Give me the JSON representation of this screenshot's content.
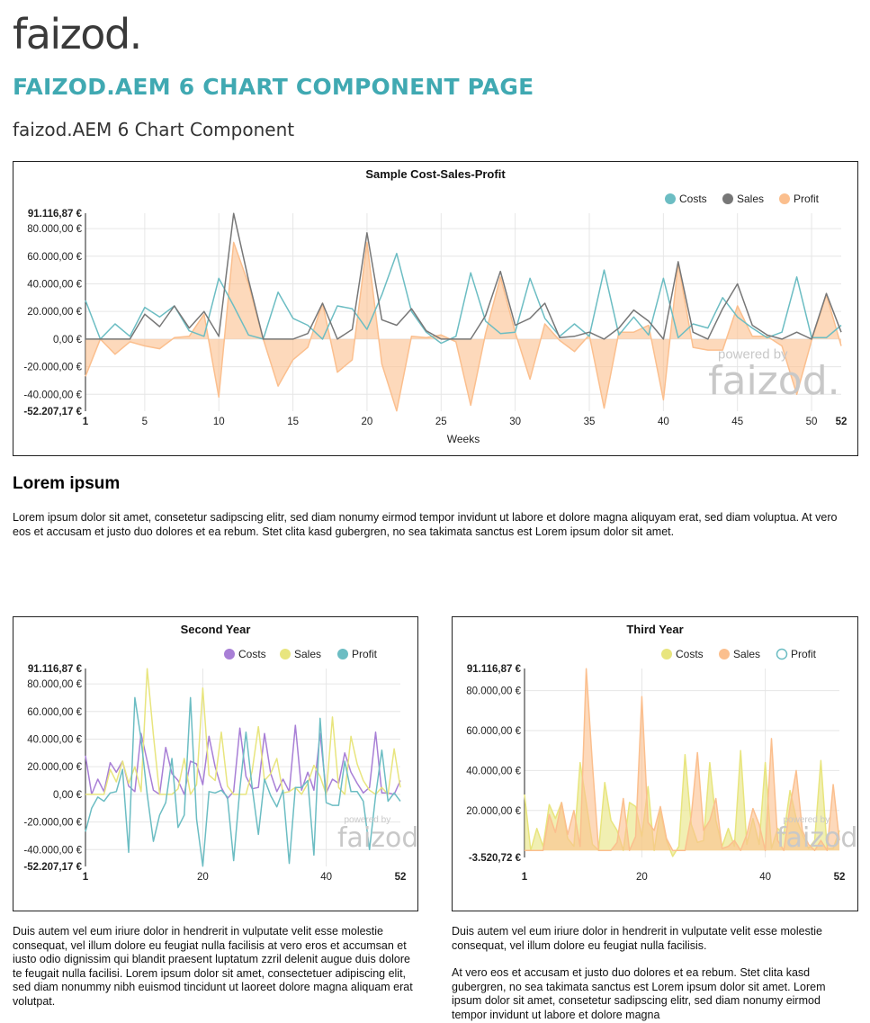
{
  "header": {
    "logo": "faizod.",
    "title": "FAIZOD.AEM 6 CHART COMPONENT PAGE",
    "subtitle": "faizod.AEM 6 Chart Component"
  },
  "watermark": {
    "powered": "powered by",
    "brand": "faizod."
  },
  "colors": {
    "title": "#40a9b2",
    "teal": "#6cbdc3",
    "grey": "#777777",
    "peach": "#fbbf8e",
    "purple": "#a87fd6",
    "yellow": "#e8e57e"
  },
  "section": {
    "heading": "Lorem ipsum",
    "text": "Lorem ipsum dolor sit amet, consetetur sadipscing elitr, sed diam nonumy eirmod tempor invidunt ut labore et dolore magna aliquyam erat, sed diam voluptua. At vero eos et accusam et justo duo dolores et ea rebum. Stet clita kasd gubergren, no sea takimata sanctus est Lorem ipsum dolor sit amet."
  },
  "bottom": {
    "left_text": "Duis autem vel eum iriure dolor in hendrerit in vulputate velit esse molestie consequat, vel illum dolore eu feugiat nulla facilisis at vero eros et accumsan et iusto odio dignissim qui blandit praesent luptatum zzril delenit augue duis dolore te feugait nulla facilisi. Lorem ipsum dolor sit amet, consectetuer adipiscing elit, sed diam nonummy nibh euismod tincidunt ut laoreet dolore magna aliquam erat volutpat.",
    "right_text_1": "Duis autem vel eum iriure dolor in hendrerit in vulputate velit esse molestie consequat, vel illum dolore eu feugiat nulla facilisis.",
    "right_text_2": "At vero eos et accusam et justo duo dolores et ea rebum. Stet clita kasd gubergren, no sea takimata sanctus est Lorem ipsum dolor sit amet. Lorem ipsum dolor sit amet, consetetur sadipscing elitr, sed diam nonumy eirmod tempor invidunt ut labore et dolore magna"
  },
  "chart_data": [
    {
      "type": "line",
      "title": "Sample Cost-Sales-Profit",
      "xlabel": "Weeks",
      "ylabel": "",
      "ylim": [
        -52207.17,
        91116.87
      ],
      "y_ticks": [
        -40000,
        -20000,
        0,
        20000,
        40000,
        60000,
        80000
      ],
      "y_tick_labels": [
        "-40.000,00 €",
        "-20.000,00 €",
        "0,00 €",
        "20.000,00 €",
        "40.000,00 €",
        "60.000,00 €",
        "80.000,00 €"
      ],
      "y_min_label": "-52.207,17 €",
      "y_max_label": "91.116,87 €",
      "x_ticks": [
        1,
        5,
        10,
        15,
        20,
        25,
        30,
        35,
        40,
        45,
        50,
        52
      ],
      "legend_position": "top-right",
      "grid": true,
      "series": [
        {
          "name": "Costs",
          "style": "line",
          "color": "#6cbdc3",
          "values": [
            28000,
            0,
            11000,
            2000,
            23000,
            16000,
            24000,
            6000,
            2000,
            44000,
            24000,
            3000,
            0,
            34000,
            15000,
            10000,
            0,
            24000,
            22000,
            7000,
            32000,
            62000,
            20000,
            5000,
            -3000,
            2000,
            48000,
            13000,
            4000,
            5000,
            44000,
            15000,
            2000,
            11000,
            2000,
            50000,
            3000,
            16000,
            3000,
            44000,
            1000,
            11000,
            8000,
            30000,
            16000,
            8000,
            1000,
            5000,
            45000,
            1000,
            1000,
            10000
          ]
        },
        {
          "name": "Sales",
          "style": "line",
          "color": "#777777",
          "values": [
            0,
            0,
            0,
            0,
            18000,
            9000,
            24000,
            8000,
            20000,
            2000,
            91000,
            43000,
            0,
            0,
            0,
            4000,
            26000,
            0,
            7000,
            77000,
            14000,
            10000,
            22000,
            6000,
            0,
            0,
            0,
            17000,
            49000,
            10000,
            15000,
            26000,
            1000,
            2000,
            5000,
            0,
            8000,
            21000,
            13000,
            0,
            56000,
            5000,
            0,
            22000,
            40000,
            10000,
            3000,
            0,
            5000,
            0,
            33000,
            5000
          ]
        },
        {
          "name": "Profit",
          "style": "area",
          "color": "#fbbf8e",
          "values": [
            -27000,
            0,
            -11000,
            -2000,
            -5000,
            -7000,
            1000,
            2000,
            18000,
            -42000,
            70000,
            40000,
            0,
            -34000,
            -15000,
            -6000,
            26000,
            -24000,
            -15000,
            70000,
            -18000,
            -52000,
            2000,
            1000,
            3000,
            -2000,
            -48000,
            4000,
            45000,
            5000,
            -29000,
            11000,
            -1000,
            -9000,
            3000,
            -50000,
            5000,
            5000,
            10000,
            -44000,
            55000,
            -6000,
            -8000,
            -8000,
            24000,
            2000,
            2000,
            -5000,
            -40000,
            -1000,
            32000,
            -5000
          ]
        }
      ]
    },
    {
      "type": "line",
      "title": "Second Year",
      "xlabel": "",
      "ylim": [
        -52207.17,
        91116.87
      ],
      "y_ticks": [
        -40000,
        -20000,
        0,
        20000,
        40000,
        60000,
        80000
      ],
      "y_tick_labels": [
        "-40.000,00 €",
        "-20.000,00 €",
        "0,00 €",
        "20.000,00 €",
        "40.000,00 €",
        "60.000,00 €",
        "80.000,00 €"
      ],
      "y_min_label": "-52.207,17 €",
      "y_max_label": "91.116,87 €",
      "x_ticks": [
        1,
        20,
        40,
        52
      ],
      "legend_position": "top-right",
      "grid": true,
      "series": [
        {
          "name": "Costs",
          "style": "line",
          "color": "#a87fd6",
          "values": [
            28000,
            0,
            11000,
            2000,
            23000,
            16000,
            24000,
            6000,
            2000,
            44000,
            24000,
            3000,
            0,
            34000,
            15000,
            10000,
            0,
            24000,
            22000,
            7000,
            42000,
            20000,
            5000,
            -3000,
            2000,
            48000,
            13000,
            4000,
            5000,
            44000,
            15000,
            2000,
            11000,
            2000,
            50000,
            3000,
            16000,
            3000,
            44000,
            1000,
            11000,
            8000,
            30000,
            16000,
            8000,
            1000,
            5000,
            45000,
            1000,
            1000,
            0,
            10000
          ]
        },
        {
          "name": "Sales",
          "style": "line",
          "color": "#e8e57e",
          "values": [
            0,
            0,
            0,
            0,
            18000,
            9000,
            24000,
            8000,
            20000,
            2000,
            91000,
            43000,
            0,
            0,
            0,
            4000,
            26000,
            0,
            7000,
            77000,
            14000,
            10000,
            45000,
            6000,
            0,
            0,
            0,
            17000,
            49000,
            10000,
            15000,
            26000,
            1000,
            2000,
            5000,
            0,
            8000,
            21000,
            13000,
            0,
            56000,
            5000,
            0,
            42000,
            22000,
            10000,
            3000,
            0,
            5000,
            0,
            33000,
            5000
          ]
        },
        {
          "name": "Profit",
          "style": "line",
          "color": "#6cbdc3",
          "values": [
            -27000,
            -10000,
            -2000,
            -5000,
            1000,
            2000,
            18000,
            -42000,
            70000,
            40000,
            0,
            -34000,
            -15000,
            -6000,
            26000,
            -24000,
            -15000,
            70000,
            -18000,
            -52000,
            2000,
            1000,
            3000,
            -2000,
            -48000,
            4000,
            45000,
            5000,
            -29000,
            11000,
            -1000,
            -9000,
            3000,
            -50000,
            5000,
            5000,
            10000,
            -44000,
            55000,
            -6000,
            -8000,
            -8000,
            24000,
            2000,
            2000,
            -5000,
            -40000,
            -1000,
            32000,
            -5000,
            1000,
            -5000
          ]
        }
      ]
    },
    {
      "type": "area",
      "title": "Third Year",
      "xlabel": "",
      "ylim": [
        -3520.72,
        91116.87
      ],
      "y_ticks": [
        20000,
        40000,
        60000,
        80000
      ],
      "y_tick_labels": [
        "20.000,00 €",
        "40.000,00 €",
        "60.000,00 €",
        "80.000,00 €"
      ],
      "y_min_label": "-3.520,72 €",
      "y_max_label": "91.116,87 €",
      "x_ticks": [
        1,
        20,
        40,
        52
      ],
      "legend_position": "top-right",
      "grid": true,
      "series": [
        {
          "name": "Costs",
          "style": "area",
          "color": "#e8e57e",
          "values": [
            28000,
            0,
            11000,
            2000,
            23000,
            16000,
            24000,
            6000,
            2000,
            44000,
            24000,
            3000,
            0,
            34000,
            15000,
            10000,
            0,
            24000,
            22000,
            7000,
            32000,
            0,
            20000,
            5000,
            -3000,
            2000,
            48000,
            13000,
            4000,
            5000,
            44000,
            15000,
            2000,
            11000,
            2000,
            50000,
            3000,
            16000,
            3000,
            44000,
            1000,
            11000,
            8000,
            30000,
            16000,
            8000,
            1000,
            5000,
            45000,
            1000,
            1000,
            10000
          ]
        },
        {
          "name": "Sales",
          "style": "area",
          "color": "#fbbf8e",
          "values": [
            0,
            0,
            0,
            0,
            18000,
            9000,
            24000,
            8000,
            20000,
            2000,
            91000,
            43000,
            0,
            0,
            0,
            4000,
            26000,
            0,
            7000,
            77000,
            14000,
            10000,
            22000,
            6000,
            0,
            0,
            0,
            17000,
            49000,
            10000,
            15000,
            26000,
            1000,
            2000,
            5000,
            0,
            8000,
            21000,
            13000,
            0,
            56000,
            5000,
            0,
            22000,
            40000,
            10000,
            3000,
            0,
            5000,
            0,
            33000,
            5000
          ]
        },
        {
          "name": "Profit",
          "style": "hollow",
          "color": "#6cbdc3",
          "values": []
        }
      ]
    }
  ]
}
